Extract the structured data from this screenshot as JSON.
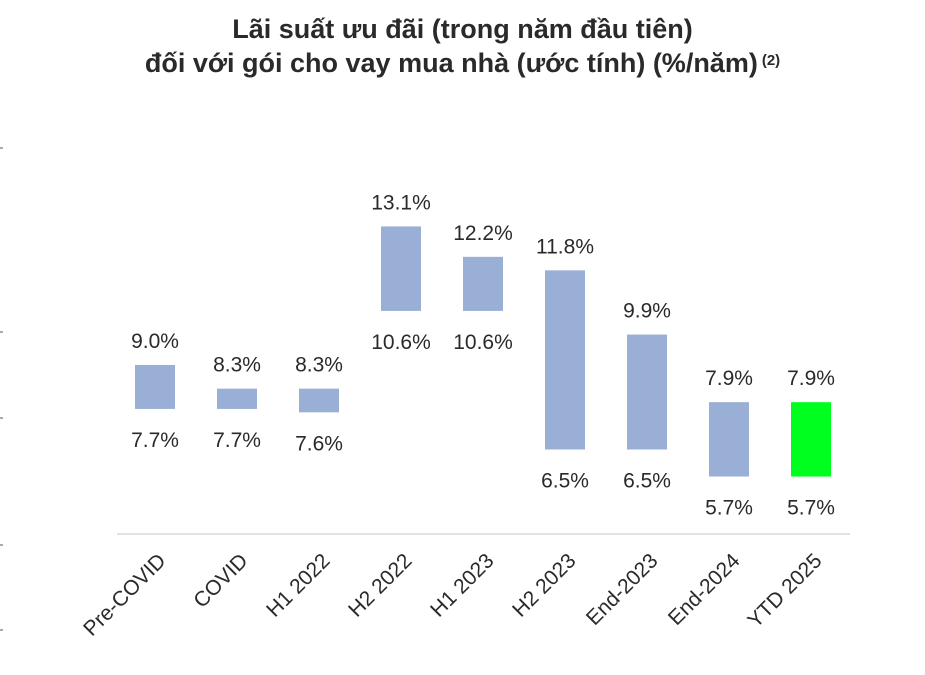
{
  "chart_data": {
    "type": "floating_bar",
    "title_line1": "Lãi suất ưu đãi (trong năm đầu tiên)",
    "title_line2": "đối với gói cho vay mua nhà (ước tính) (%/năm)",
    "title_note": "(2)",
    "categories": [
      "Pre-COVID",
      "COVID",
      "H1 2022",
      "H2 2022",
      "H1 2023",
      "H2 2023",
      "End-2023",
      "End-2024",
      "YTD 2025"
    ],
    "high": [
      9.0,
      8.3,
      8.3,
      13.1,
      12.2,
      11.8,
      9.9,
      7.9,
      7.9
    ],
    "low": [
      7.7,
      7.7,
      7.6,
      10.6,
      10.6,
      6.5,
      6.5,
      5.7,
      5.7
    ],
    "high_labels": [
      "9.0%",
      "8.3%",
      "8.3%",
      "13.1%",
      "12.2%",
      "11.8%",
      "9.9%",
      "7.9%",
      "7.9%"
    ],
    "low_labels": [
      "7.7%",
      "7.7%",
      "7.6%",
      "10.6%",
      "10.6%",
      "6.5%",
      "6.5%",
      "5.7%",
      "5.7%"
    ],
    "colors": {
      "bar": "#9aafd5",
      "highlight": "#00ff1f",
      "axis": "#d9d9d9"
    },
    "highlight_index": 8
  }
}
